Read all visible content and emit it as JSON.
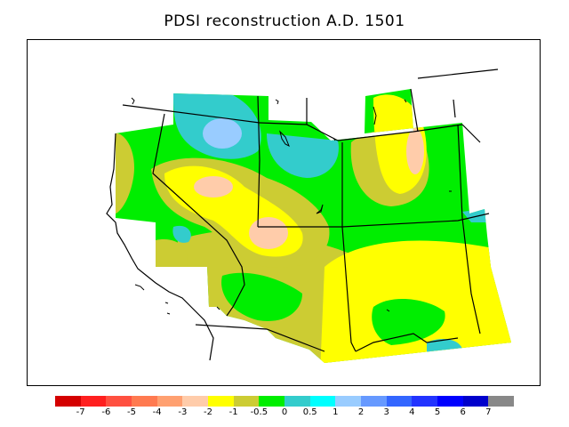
{
  "title": "PDSI reconstruction A.D. 1501",
  "legend": {
    "colors": [
      "#d40000",
      "#ff1f1f",
      "#ff5040",
      "#ff7a50",
      "#ffa070",
      "#ffccaa",
      "#ffff00",
      "#cccc33",
      "#00ee00",
      "#33cccc",
      "#00ffff",
      "#99ccff",
      "#6699ff",
      "#3366ff",
      "#2233ff",
      "#0000ff",
      "#0000cc",
      "#888888"
    ],
    "labels": [
      "-7",
      "-6",
      "-5",
      "-4",
      "-3",
      "-2",
      "-1",
      "-0.5",
      "0",
      "0.5",
      "1",
      "2",
      "3",
      "4",
      "5",
      "6",
      "7"
    ]
  },
  "palette": {
    "dry_moderate": "#ffccaa",
    "dry_mild": "#ffff00",
    "near_normal_dry": "#cccc33",
    "near_normal": "#00ee00",
    "near_normal_wet": "#33cccc",
    "wet_mild": "#99ccff"
  }
}
